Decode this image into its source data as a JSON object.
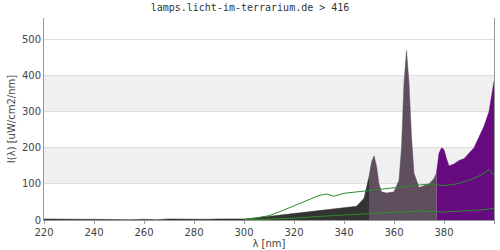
{
  "chart_data": {
    "type": "area",
    "title": "lamps.licht-im-terrarium.de > 416",
    "x_label": "λ [nm]",
    "y_label": "I(λ) [uW/cm2/nm]",
    "xlim": [
      220,
      400
    ],
    "xticks": [
      220,
      240,
      260,
      280,
      300,
      320,
      340,
      360,
      380,
      400
    ],
    "ylim": [
      0,
      560
    ],
    "yticks": [
      0,
      100,
      200,
      300,
      400,
      500
    ],
    "grid": true,
    "series": [
      {
        "type": "area",
        "color": "#333333",
        "x": [
          220,
          225,
          230,
          235,
          240,
          245,
          250,
          255,
          260,
          265,
          270,
          275,
          280,
          285,
          290,
          295,
          300,
          305,
          310,
          315,
          320,
          325,
          330,
          335,
          340,
          345,
          348,
          350
        ],
        "values": [
          3,
          2,
          3,
          2,
          2,
          1,
          2,
          1,
          2,
          1,
          3,
          2,
          3,
          2,
          3,
          2,
          3,
          6,
          10,
          14,
          18,
          22,
          28,
          30,
          34,
          38,
          60,
          120
        ]
      },
      {
        "type": "area",
        "color": "#5e4e5e",
        "x": [
          350,
          351,
          352,
          353,
          354,
          355,
          357,
          360,
          362,
          363,
          364,
          365,
          366,
          367,
          368,
          370,
          372,
          374,
          376,
          377
        ],
        "values": [
          120,
          160,
          178,
          150,
          100,
          78,
          75,
          78,
          110,
          200,
          380,
          470,
          380,
          230,
          130,
          90,
          95,
          100,
          115,
          130
        ]
      },
      {
        "type": "area",
        "color": "#660a7f",
        "x": [
          377,
          378,
          379,
          380,
          381,
          382,
          384,
          386,
          388,
          390,
          392,
          394,
          396,
          398,
          399,
          400
        ],
        "values": [
          130,
          185,
          200,
          195,
          170,
          150,
          155,
          165,
          170,
          185,
          200,
          230,
          260,
          300,
          340,
          385
        ]
      },
      {
        "type": "line",
        "color": "#2e8b2e",
        "x": [
          300,
          305,
          310,
          315,
          320,
          325,
          330,
          333,
          336,
          340,
          345,
          350,
          355,
          360,
          365,
          370,
          375,
          380,
          385,
          390,
          395,
          398,
          400
        ],
        "values": [
          0,
          5,
          12,
          25,
          40,
          55,
          68,
          72,
          66,
          74,
          78,
          80,
          84,
          88,
          92,
          97,
          100,
          95,
          100,
          110,
          125,
          140,
          125
        ]
      },
      {
        "type": "line",
        "color": "#2e8b2e",
        "x": [
          300,
          310,
          320,
          330,
          340,
          350,
          360,
          370,
          380,
          390,
          395,
          400
        ],
        "values": [
          0,
          2,
          5,
          10,
          14,
          18,
          20,
          25,
          22,
          25,
          28,
          32
        ]
      }
    ]
  }
}
